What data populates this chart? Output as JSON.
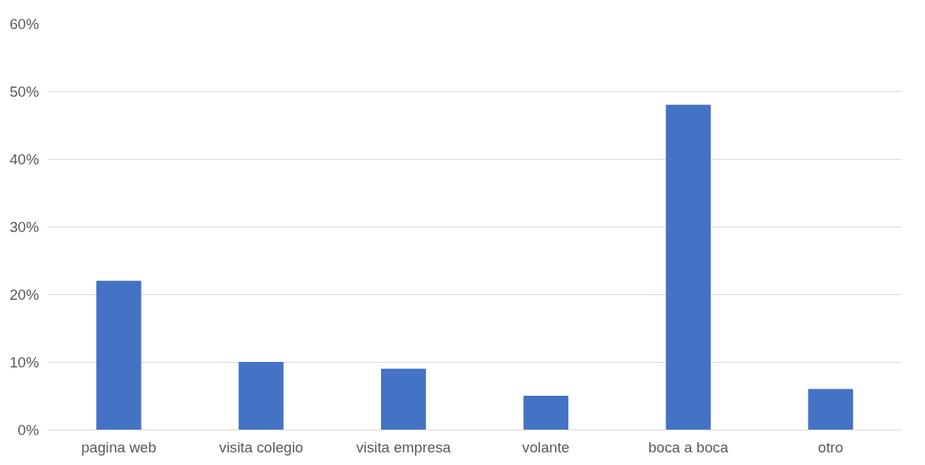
{
  "chart_data": {
    "type": "bar",
    "categories": [
      "pagina web",
      "visita colegio",
      "visita empresa",
      "volante",
      "boca a boca",
      "otro"
    ],
    "values": [
      22,
      10,
      9,
      5,
      48,
      6
    ],
    "color": "#4472c4",
    "ylim": [
      0,
      60
    ],
    "yticks": [
      {
        "value": 0,
        "label": "0%"
      },
      {
        "value": 10,
        "label": "10%"
      },
      {
        "value": 20,
        "label": "20%"
      },
      {
        "value": 30,
        "label": "30%"
      },
      {
        "value": 40,
        "label": "40%"
      },
      {
        "value": 50,
        "label": "50%"
      },
      {
        "value": 60,
        "label": "60%"
      }
    ],
    "grid": "y"
  }
}
